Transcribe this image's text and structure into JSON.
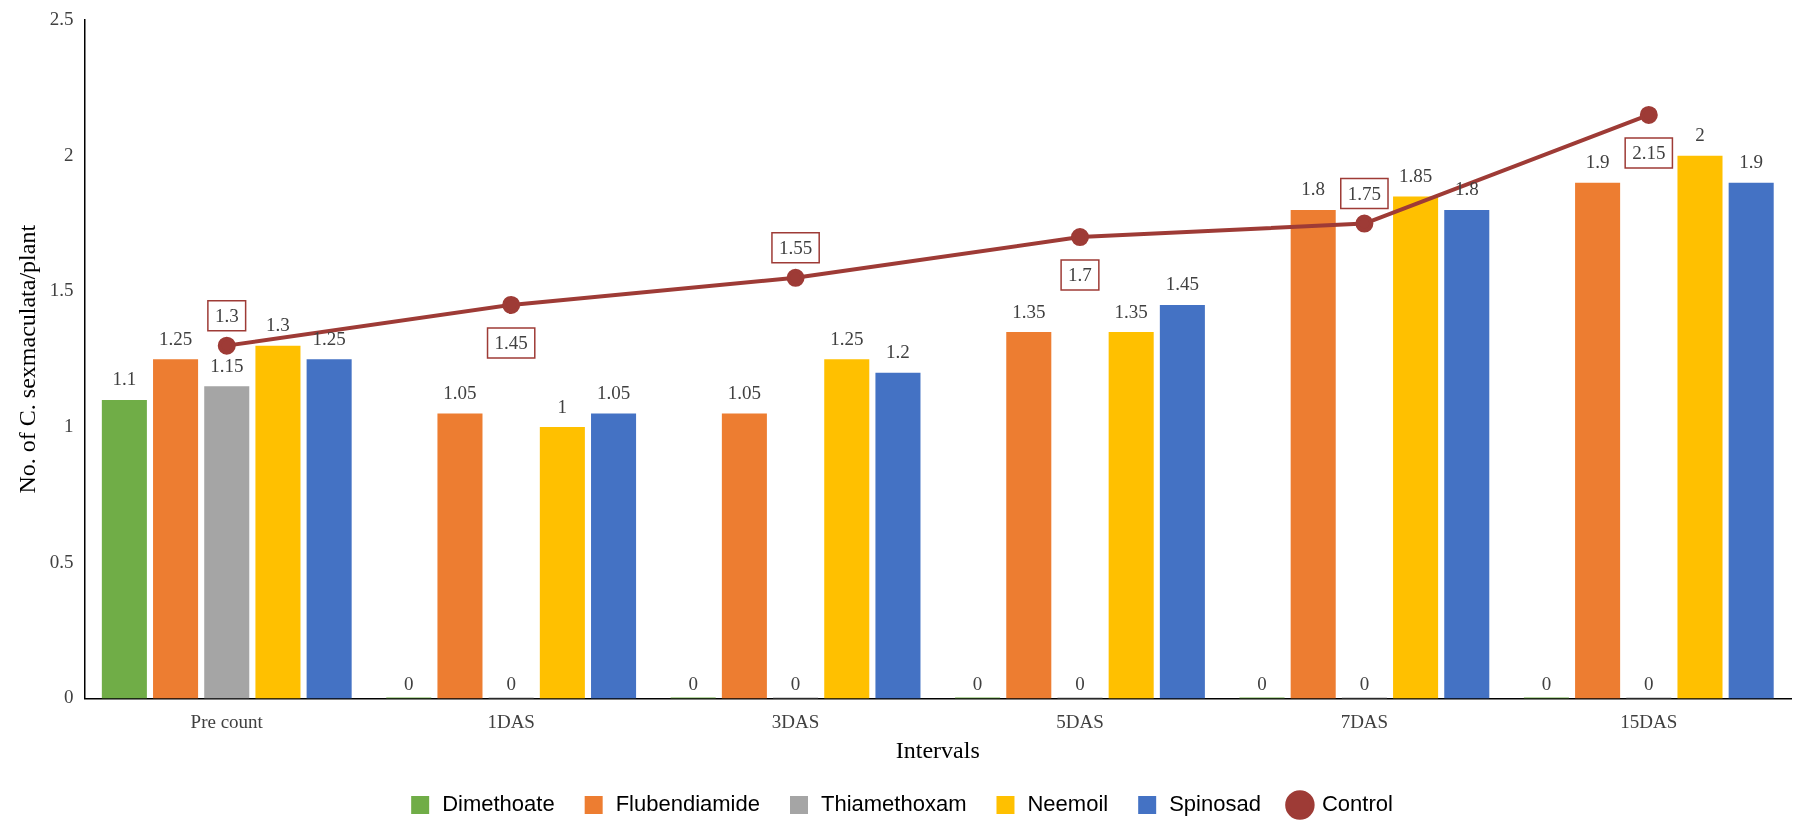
{
  "chart_data": {
    "type": "bar",
    "xlabel": "Intervals",
    "ylabel": "No. of C. sexmaculata/plant",
    "categories": [
      "Pre count",
      "1DAS",
      "3DAS",
      "5DAS",
      "7DAS",
      "15DAS"
    ],
    "series": [
      {
        "name": "Dimethoate",
        "color": "#70ad47",
        "values": [
          1.1,
          0,
          0,
          0,
          0,
          0
        ]
      },
      {
        "name": "Flubendiamide",
        "color": "#ed7d31",
        "values": [
          1.25,
          1.05,
          1.05,
          1.35,
          1.8,
          1.9
        ]
      },
      {
        "name": "Thiamethoxam",
        "color": "#a5a5a5",
        "values": [
          1.15,
          0,
          0,
          0,
          0,
          0
        ]
      },
      {
        "name": "Neemoil",
        "color": "#ffc000",
        "values": [
          1.3,
          1,
          1.25,
          1.35,
          1.85,
          2
        ]
      },
      {
        "name": "Spinosad",
        "color": "#4472c4",
        "values": [
          1.25,
          1.05,
          1.2,
          1.45,
          1.8,
          1.9
        ]
      },
      {
        "name": "Control",
        "color": "#9e3b36",
        "type": "line",
        "marker": "circle",
        "values": [
          1.3,
          1.45,
          1.55,
          1.7,
          1.75,
          2.15
        ]
      }
    ],
    "ylim": [
      0,
      2.5
    ],
    "yticks": [
      0,
      0.5,
      1,
      1.5,
      2,
      2.5
    ],
    "grid": false,
    "legend": "bottom",
    "data_labels": true
  }
}
